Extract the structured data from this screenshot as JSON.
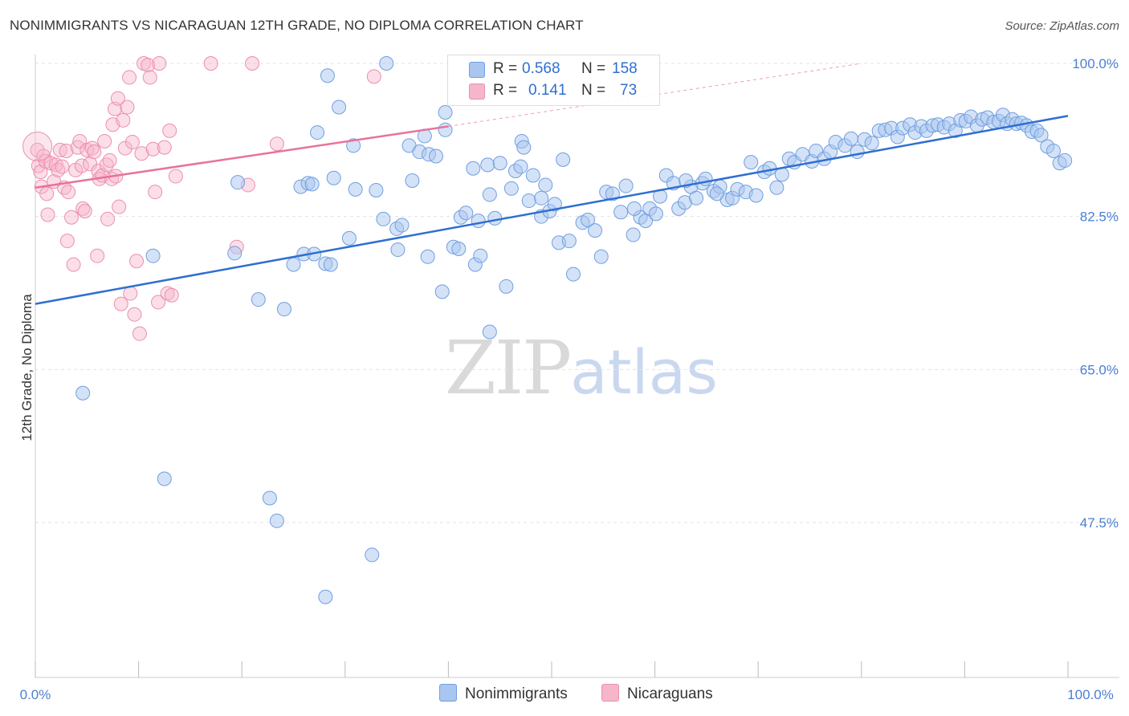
{
  "header": {
    "title": "NONIMMIGRANTS VS NICARAGUAN 12TH GRADE, NO DIPLOMA CORRELATION CHART",
    "source": "Source: ZipAtlas.com"
  },
  "legend": {
    "rows": [
      {
        "r_label": "R =",
        "r_value": "0.568",
        "n_label": "N =",
        "n_value": "158",
        "color": "#a9c6f0"
      },
      {
        "r_label": "R =",
        "r_value": "0.141",
        "n_label": "N =",
        "n_value": "73",
        "color": "#f6b6ca"
      }
    ]
  },
  "bottom_legend": {
    "series_a": "Nonimmigrants",
    "series_b": "Nicaraguans"
  },
  "watermark": {
    "zip": "ZIP",
    "atlas": "atlas"
  },
  "colors": {
    "blue_fill": "#a9c6f0",
    "blue_stroke": "#6f9fe0",
    "blue_line": "#2f6fd0",
    "pink_fill": "#f6b6ca",
    "pink_stroke": "#ec8fae",
    "pink_line": "#e8729a",
    "grid": "#e3e3e3",
    "tick_text": "#4a7fd4"
  },
  "chart_data": {
    "type": "scatter",
    "title": "NONIMMIGRANTS VS NICARAGUAN 12TH GRADE, NO DIPLOMA CORRELATION CHART",
    "xlabel": "",
    "ylabel": "12th Grade, No Diploma",
    "xlim": [
      0,
      100
    ],
    "ylim": [
      32,
      102
    ],
    "x_tick_labels": [
      "0.0%",
      "100.0%"
    ],
    "y_ticks": [
      47.5,
      65.0,
      82.5,
      100.0
    ],
    "y_tick_labels": [
      "47.5%",
      "65.0%",
      "82.5%",
      "100.0%"
    ],
    "grid": true,
    "legend_placement": "top-center",
    "series": [
      {
        "name": "Nonimmigrants",
        "r": 0.568,
        "n": 158,
        "trend": {
          "x": [
            0,
            100
          ],
          "y": [
            72.5,
            94.0
          ]
        },
        "points": [
          [
            4.6,
            62.3
          ],
          [
            11.4,
            78.0
          ],
          [
            12.5,
            52.5
          ],
          [
            19.3,
            78.3
          ],
          [
            19.6,
            86.4
          ],
          [
            21.6,
            73.0
          ],
          [
            22.7,
            50.3
          ],
          [
            23.4,
            47.7
          ],
          [
            24.1,
            71.9
          ],
          [
            25.0,
            77.0
          ],
          [
            25.7,
            85.9
          ],
          [
            26.0,
            78.2
          ],
          [
            26.4,
            86.3
          ],
          [
            27.0,
            78.2
          ],
          [
            27.3,
            92.1
          ],
          [
            28.1,
            77.1
          ],
          [
            28.1,
            39.0
          ],
          [
            28.3,
            98.6
          ],
          [
            28.6,
            77.0
          ],
          [
            28.9,
            86.9
          ],
          [
            29.4,
            95.0
          ],
          [
            30.4,
            80.0
          ],
          [
            30.8,
            90.6
          ],
          [
            31.0,
            85.6
          ],
          [
            32.6,
            43.8
          ],
          [
            33.0,
            85.5
          ],
          [
            33.7,
            82.2
          ],
          [
            34.0,
            100.0
          ],
          [
            35.0,
            81.1
          ],
          [
            35.1,
            78.7
          ],
          [
            35.5,
            81.5
          ],
          [
            36.2,
            90.6
          ],
          [
            36.5,
            86.6
          ],
          [
            37.2,
            89.9
          ],
          [
            37.7,
            91.7
          ],
          [
            38.1,
            89.6
          ],
          [
            38.8,
            89.4
          ],
          [
            39.4,
            73.9
          ],
          [
            39.7,
            94.4
          ],
          [
            39.7,
            92.4
          ],
          [
            40.5,
            79.0
          ],
          [
            41.0,
            78.8
          ],
          [
            41.2,
            82.4
          ],
          [
            41.7,
            82.9
          ],
          [
            42.4,
            88.0
          ],
          [
            42.6,
            77.0
          ],
          [
            42.9,
            82.0
          ],
          [
            43.1,
            78.0
          ],
          [
            43.8,
            88.4
          ],
          [
            44.0,
            69.3
          ],
          [
            44.5,
            82.3
          ],
          [
            45.0,
            88.6
          ],
          [
            45.6,
            74.5
          ],
          [
            46.1,
            85.7
          ],
          [
            46.5,
            87.7
          ],
          [
            47.0,
            88.2
          ],
          [
            47.1,
            91.1
          ],
          [
            47.3,
            90.4
          ],
          [
            47.8,
            84.3
          ],
          [
            48.2,
            87.2
          ],
          [
            49.0,
            82.5
          ],
          [
            49.0,
            84.6
          ],
          [
            49.4,
            86.1
          ],
          [
            49.8,
            83.1
          ],
          [
            50.3,
            83.9
          ],
          [
            50.7,
            79.5
          ],
          [
            51.1,
            89.0
          ],
          [
            51.7,
            79.7
          ],
          [
            52.1,
            75.9
          ],
          [
            53.0,
            81.8
          ],
          [
            53.5,
            82.1
          ],
          [
            54.2,
            80.9
          ],
          [
            54.8,
            77.9
          ],
          [
            55.3,
            85.3
          ],
          [
            55.9,
            85.1
          ],
          [
            56.7,
            83.0
          ],
          [
            57.2,
            86.0
          ],
          [
            57.9,
            80.4
          ],
          [
            58.6,
            82.4
          ],
          [
            59.1,
            82.0
          ],
          [
            59.5,
            83.4
          ],
          [
            60.1,
            82.8
          ],
          [
            60.5,
            84.8
          ],
          [
            61.1,
            87.2
          ],
          [
            61.8,
            86.3
          ],
          [
            62.3,
            83.4
          ],
          [
            62.9,
            84.1
          ],
          [
            63.5,
            85.9
          ],
          [
            64.0,
            84.6
          ],
          [
            64.6,
            86.3
          ],
          [
            64.9,
            86.8
          ],
          [
            65.7,
            85.4
          ],
          [
            66.3,
            85.9
          ],
          [
            67.0,
            84.4
          ],
          [
            67.5,
            84.6
          ],
          [
            68.0,
            85.6
          ],
          [
            68.8,
            85.3
          ],
          [
            69.3,
            88.7
          ],
          [
            69.8,
            84.9
          ],
          [
            70.6,
            87.6
          ],
          [
            71.1,
            88.0
          ],
          [
            71.8,
            85.8
          ],
          [
            72.3,
            87.3
          ],
          [
            73.0,
            89.1
          ],
          [
            73.5,
            88.7
          ],
          [
            74.3,
            89.6
          ],
          [
            75.2,
            88.8
          ],
          [
            75.6,
            90.0
          ],
          [
            76.4,
            89.1
          ],
          [
            77.0,
            89.9
          ],
          [
            77.5,
            91.0
          ],
          [
            78.4,
            90.6
          ],
          [
            79.0,
            91.4
          ],
          [
            79.6,
            89.9
          ],
          [
            80.3,
            91.3
          ],
          [
            81.0,
            90.9
          ],
          [
            81.7,
            92.3
          ],
          [
            82.3,
            92.4
          ],
          [
            82.9,
            92.6
          ],
          [
            83.5,
            91.6
          ],
          [
            84.0,
            92.6
          ],
          [
            84.7,
            93.0
          ],
          [
            85.2,
            92.1
          ],
          [
            85.8,
            92.8
          ],
          [
            86.3,
            92.3
          ],
          [
            86.9,
            92.9
          ],
          [
            87.4,
            93.0
          ],
          [
            88.0,
            92.7
          ],
          [
            88.5,
            93.1
          ],
          [
            89.1,
            92.3
          ],
          [
            89.6,
            93.5
          ],
          [
            90.1,
            93.4
          ],
          [
            90.6,
            93.9
          ],
          [
            91.2,
            92.9
          ],
          [
            91.7,
            93.6
          ],
          [
            92.2,
            93.8
          ],
          [
            92.8,
            93.3
          ],
          [
            93.3,
            93.4
          ],
          [
            93.7,
            94.1
          ],
          [
            94.1,
            93.1
          ],
          [
            94.6,
            93.6
          ],
          [
            95.0,
            93.1
          ],
          [
            95.5,
            93.2
          ],
          [
            96.0,
            92.9
          ],
          [
            96.5,
            92.2
          ],
          [
            97.0,
            92.3
          ],
          [
            97.4,
            91.8
          ],
          [
            98.0,
            90.5
          ],
          [
            98.6,
            90.0
          ],
          [
            99.2,
            88.6
          ],
          [
            99.7,
            88.9
          ],
          [
            26.8,
            86.2
          ],
          [
            38.0,
            77.9
          ],
          [
            44.0,
            85.0
          ],
          [
            58.0,
            83.4
          ],
          [
            63.0,
            86.6
          ],
          [
            66.0,
            85.1
          ]
        ]
      },
      {
        "name": "Nicaraguans",
        "r": 0.141,
        "n": 73,
        "trend": {
          "x": [
            0,
            40
          ],
          "y": [
            85.8,
            92.8
          ],
          "dashed_extension": {
            "x": [
              40,
              80
            ],
            "y": [
              92.8,
              100.0
            ]
          }
        },
        "points": [
          [
            0.2,
            90.1
          ],
          [
            0.3,
            88.3
          ],
          [
            0.5,
            87.6
          ],
          [
            0.6,
            85.9
          ],
          [
            0.8,
            89.4
          ],
          [
            1.0,
            88.8
          ],
          [
            1.1,
            85.1
          ],
          [
            1.2,
            82.7
          ],
          [
            1.5,
            88.6
          ],
          [
            1.8,
            86.5
          ],
          [
            2.0,
            88.4
          ],
          [
            2.2,
            87.8
          ],
          [
            2.4,
            90.1
          ],
          [
            2.6,
            88.2
          ],
          [
            2.8,
            85.8
          ],
          [
            3.0,
            90.0
          ],
          [
            3.1,
            79.7
          ],
          [
            3.2,
            85.3
          ],
          [
            3.5,
            82.4
          ],
          [
            3.7,
            77.0
          ],
          [
            3.9,
            87.8
          ],
          [
            4.1,
            90.4
          ],
          [
            4.3,
            91.1
          ],
          [
            4.5,
            88.3
          ],
          [
            4.6,
            83.4
          ],
          [
            4.8,
            83.1
          ],
          [
            5.0,
            90.1
          ],
          [
            5.3,
            88.5
          ],
          [
            5.5,
            90.3
          ],
          [
            5.7,
            89.9
          ],
          [
            6.0,
            78.0
          ],
          [
            6.1,
            87.7
          ],
          [
            6.2,
            86.8
          ],
          [
            6.5,
            87.2
          ],
          [
            6.7,
            91.1
          ],
          [
            6.9,
            88.4
          ],
          [
            7.0,
            82.2
          ],
          [
            7.2,
            88.9
          ],
          [
            7.4,
            86.8
          ],
          [
            7.5,
            93.0
          ],
          [
            7.7,
            94.8
          ],
          [
            7.8,
            87.1
          ],
          [
            8.0,
            96.0
          ],
          [
            8.1,
            83.6
          ],
          [
            8.3,
            72.5
          ],
          [
            8.5,
            93.5
          ],
          [
            8.7,
            90.3
          ],
          [
            8.9,
            95.0
          ],
          [
            9.1,
            98.4
          ],
          [
            9.2,
            73.7
          ],
          [
            9.4,
            91.0
          ],
          [
            9.6,
            71.3
          ],
          [
            9.8,
            77.4
          ],
          [
            10.1,
            69.1
          ],
          [
            10.3,
            89.7
          ],
          [
            10.5,
            100.0
          ],
          [
            10.9,
            99.8
          ],
          [
            11.1,
            98.4
          ],
          [
            11.4,
            90.2
          ],
          [
            11.6,
            85.3
          ],
          [
            11.9,
            72.7
          ],
          [
            12.0,
            100.0
          ],
          [
            12.5,
            90.4
          ],
          [
            12.8,
            73.7
          ],
          [
            13.0,
            92.3
          ],
          [
            13.2,
            73.5
          ],
          [
            13.6,
            87.1
          ],
          [
            17.0,
            100.0
          ],
          [
            19.5,
            79.0
          ],
          [
            20.6,
            86.1
          ],
          [
            21.0,
            100.0
          ],
          [
            23.4,
            90.8
          ],
          [
            32.8,
            98.5
          ]
        ]
      }
    ]
  }
}
